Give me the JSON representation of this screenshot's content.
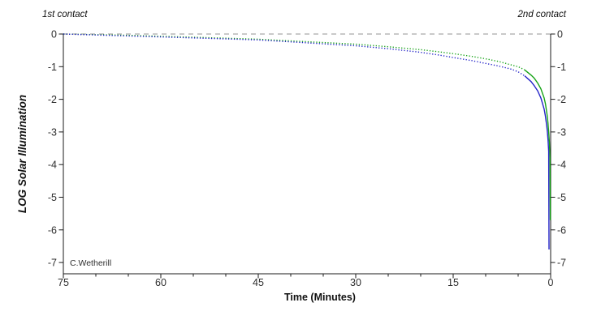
{
  "chart_data": {
    "type": "line",
    "title": "",
    "xlabel": "Time (Minutes)",
    "ylabel": "LOG Solar Illumination",
    "annotations": {
      "first_contact": "1st contact",
      "second_contact": "2nd contact",
      "credit": "C.Wetherill"
    },
    "x_axis": {
      "major_ticks": [
        75,
        60,
        45,
        30,
        15,
        0
      ],
      "minor_tick_step": 5,
      "min": 0,
      "max": 75,
      "reversed": true
    },
    "y_axis": {
      "ticks": [
        0,
        -1,
        -2,
        -3,
        -4,
        -5,
        -6,
        -7
      ],
      "min": -7,
      "max": 0,
      "right_mirror": true
    },
    "reference_line": {
      "y": 0,
      "style": "dashed",
      "color": "#a9a9a9"
    },
    "grid": false,
    "legend": "none",
    "series": [
      {
        "name": "solar-illumination-green",
        "color": "#17a317",
        "style": "dotted, becomes solid near 2nd contact",
        "points": [
          [
            75,
            0
          ],
          [
            70,
            -0.02
          ],
          [
            65,
            -0.04
          ],
          [
            60,
            -0.07
          ],
          [
            55,
            -0.1
          ],
          [
            50,
            -0.13
          ],
          [
            45,
            -0.16
          ],
          [
            40,
            -0.21
          ],
          [
            35,
            -0.26
          ],
          [
            30,
            -0.31
          ],
          [
            25,
            -0.39
          ],
          [
            20,
            -0.48
          ],
          [
            17,
            -0.55
          ],
          [
            15,
            -0.6
          ],
          [
            12,
            -0.69
          ],
          [
            10,
            -0.76
          ],
          [
            8,
            -0.84
          ],
          [
            6,
            -0.95
          ],
          [
            5,
            -1.0
          ],
          [
            4,
            -1.1
          ],
          [
            3,
            -1.26
          ],
          [
            2.5,
            -1.36
          ],
          [
            2,
            -1.5
          ],
          [
            1.5,
            -1.68
          ],
          [
            1,
            -1.96
          ],
          [
            0.8,
            -2.14
          ],
          [
            0.6,
            -2.4
          ],
          [
            0.5,
            -2.55
          ],
          [
            0.4,
            -2.75
          ],
          [
            0.3,
            -3.0
          ],
          [
            0.2,
            -3.3
          ],
          [
            0.1,
            -3.8
          ],
          [
            0.05,
            -5.7
          ]
        ]
      },
      {
        "name": "solar-illumination-blue",
        "color": "#2323c8",
        "style": "dotted, becomes solid near 2nd contact",
        "points": [
          [
            75,
            0
          ],
          [
            70,
            -0.03
          ],
          [
            65,
            -0.06
          ],
          [
            60,
            -0.09
          ],
          [
            55,
            -0.12
          ],
          [
            50,
            -0.15
          ],
          [
            45,
            -0.18
          ],
          [
            40,
            -0.24
          ],
          [
            35,
            -0.3
          ],
          [
            30,
            -0.36
          ],
          [
            25,
            -0.45
          ],
          [
            20,
            -0.56
          ],
          [
            17,
            -0.65
          ],
          [
            15,
            -0.72
          ],
          [
            12,
            -0.82
          ],
          [
            10,
            -0.9
          ],
          [
            8,
            -0.98
          ],
          [
            6,
            -1.08
          ],
          [
            5,
            -1.16
          ],
          [
            4,
            -1.28
          ],
          [
            3,
            -1.46
          ],
          [
            2.5,
            -1.59
          ],
          [
            2,
            -1.74
          ],
          [
            1.5,
            -1.96
          ],
          [
            1,
            -2.3
          ],
          [
            0.8,
            -2.52
          ],
          [
            0.6,
            -2.82
          ],
          [
            0.5,
            -3.0
          ],
          [
            0.4,
            -3.25
          ],
          [
            0.3,
            -3.6
          ],
          [
            0.25,
            -6.6
          ]
        ]
      }
    ],
    "colors": {
      "axis": "#1b1b1b",
      "background": "#ffffff",
      "reference_dashed": "#a9a9a9",
      "series_blue": "#2323c8",
      "series_green": "#17a317"
    }
  }
}
